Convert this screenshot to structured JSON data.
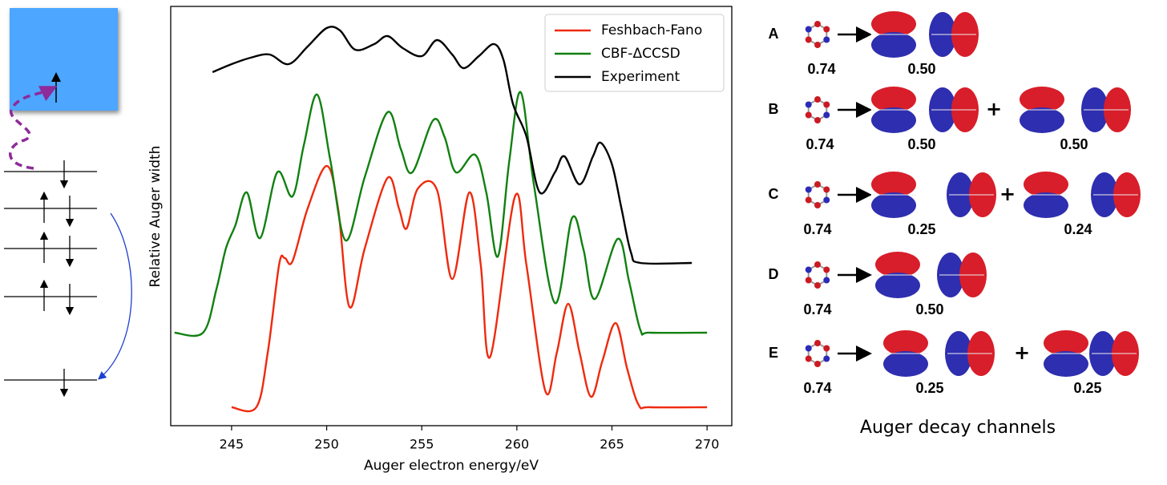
{
  "chart_data": {
    "type": "line",
    "x_label": "Auger electron energy/eV",
    "y_label": "Relative Auger width",
    "xlim": [
      241.8,
      271.3
    ],
    "ylim": [
      0,
      523
    ],
    "xticks": [
      245,
      250,
      255,
      260,
      265,
      270
    ],
    "legend": "upper right",
    "series": [
      {
        "name": "Feshbach-Fano",
        "color": "#ee2a0e",
        "x": [
          245,
          246.3,
          246.9,
          247.5,
          247.8,
          248.2,
          249,
          250,
          250.6,
          251.2,
          252,
          253.2,
          253.8,
          254.2,
          254.8,
          255.8,
          256.6,
          257.5,
          258.1,
          258.6,
          259.9,
          260.5,
          261.5,
          262.1,
          262.7,
          263.3,
          263.9,
          264.5,
          265.2,
          265.8,
          266.4,
          267,
          270
        ],
        "values": [
          23,
          23,
          91,
          201,
          209,
          205,
          271,
          324,
          271,
          148,
          221,
          309,
          271,
          246,
          296,
          294,
          183,
          291,
          201,
          86,
          286,
          201,
          43,
          91,
          152,
          91,
          36,
          81,
          128,
          71,
          26,
          23,
          23
        ]
      },
      {
        "name": "CBF-ΔCCSD",
        "color": "#118011",
        "x": [
          242,
          243.5,
          244.2,
          244.7,
          245.2,
          245.8,
          246.5,
          247.4,
          248.2,
          248.8,
          249.5,
          250.2,
          251,
          252,
          253.2,
          253.9,
          254.5,
          255.6,
          256.2,
          256.8,
          257.8,
          258.4,
          259,
          259.6,
          260.2,
          260.9,
          262,
          262.9,
          263.5,
          264.1,
          265.3,
          265.9,
          266.5,
          267,
          270
        ],
        "values": [
          116,
          116,
          170,
          221,
          250,
          291,
          234,
          316,
          286,
          350,
          413,
          330,
          231,
          310,
          391,
          345,
          316,
          381,
          360,
          316,
          338,
          290,
          211,
          330,
          416,
          300,
          153,
          259,
          220,
          158,
          233,
          180,
          119,
          116,
          116
        ]
      },
      {
        "name": "Experiment",
        "color": "#000000",
        "x": [
          244,
          245,
          246,
          247,
          248,
          249,
          250,
          250.7,
          251.5,
          252.5,
          253.2,
          254,
          255,
          255.8,
          256.6,
          257.2,
          258,
          258.8,
          259.3,
          259.8,
          260.5,
          261.2,
          262,
          262.5,
          263.3,
          264,
          264.4,
          265,
          265.5,
          266,
          266.5,
          269.2
        ],
        "values": [
          441,
          451,
          459,
          463,
          451,
          473,
          496,
          493,
          469,
          476,
          486,
          471,
          461,
          481,
          463,
          446,
          461,
          476,
          456,
          401,
          361,
          291,
          316,
          336,
          301,
          336,
          353,
          326,
          271,
          216,
          203,
          203
        ]
      }
    ]
  },
  "panel": {
    "title": "Auger decay channels",
    "rows": [
      {
        "label": "A",
        "values": [
          "0.74",
          "0.50"
        ]
      },
      {
        "label": "B",
        "values": [
          "0.74",
          "0.50",
          "0.50"
        ]
      },
      {
        "label": "C",
        "values": [
          "0.74",
          "0.25",
          "0.24"
        ]
      },
      {
        "label": "D",
        "values": [
          "0.74",
          "0.50"
        ]
      },
      {
        "label": "E",
        "values": [
          "0.74",
          "0.25",
          "0.25"
        ]
      }
    ]
  }
}
